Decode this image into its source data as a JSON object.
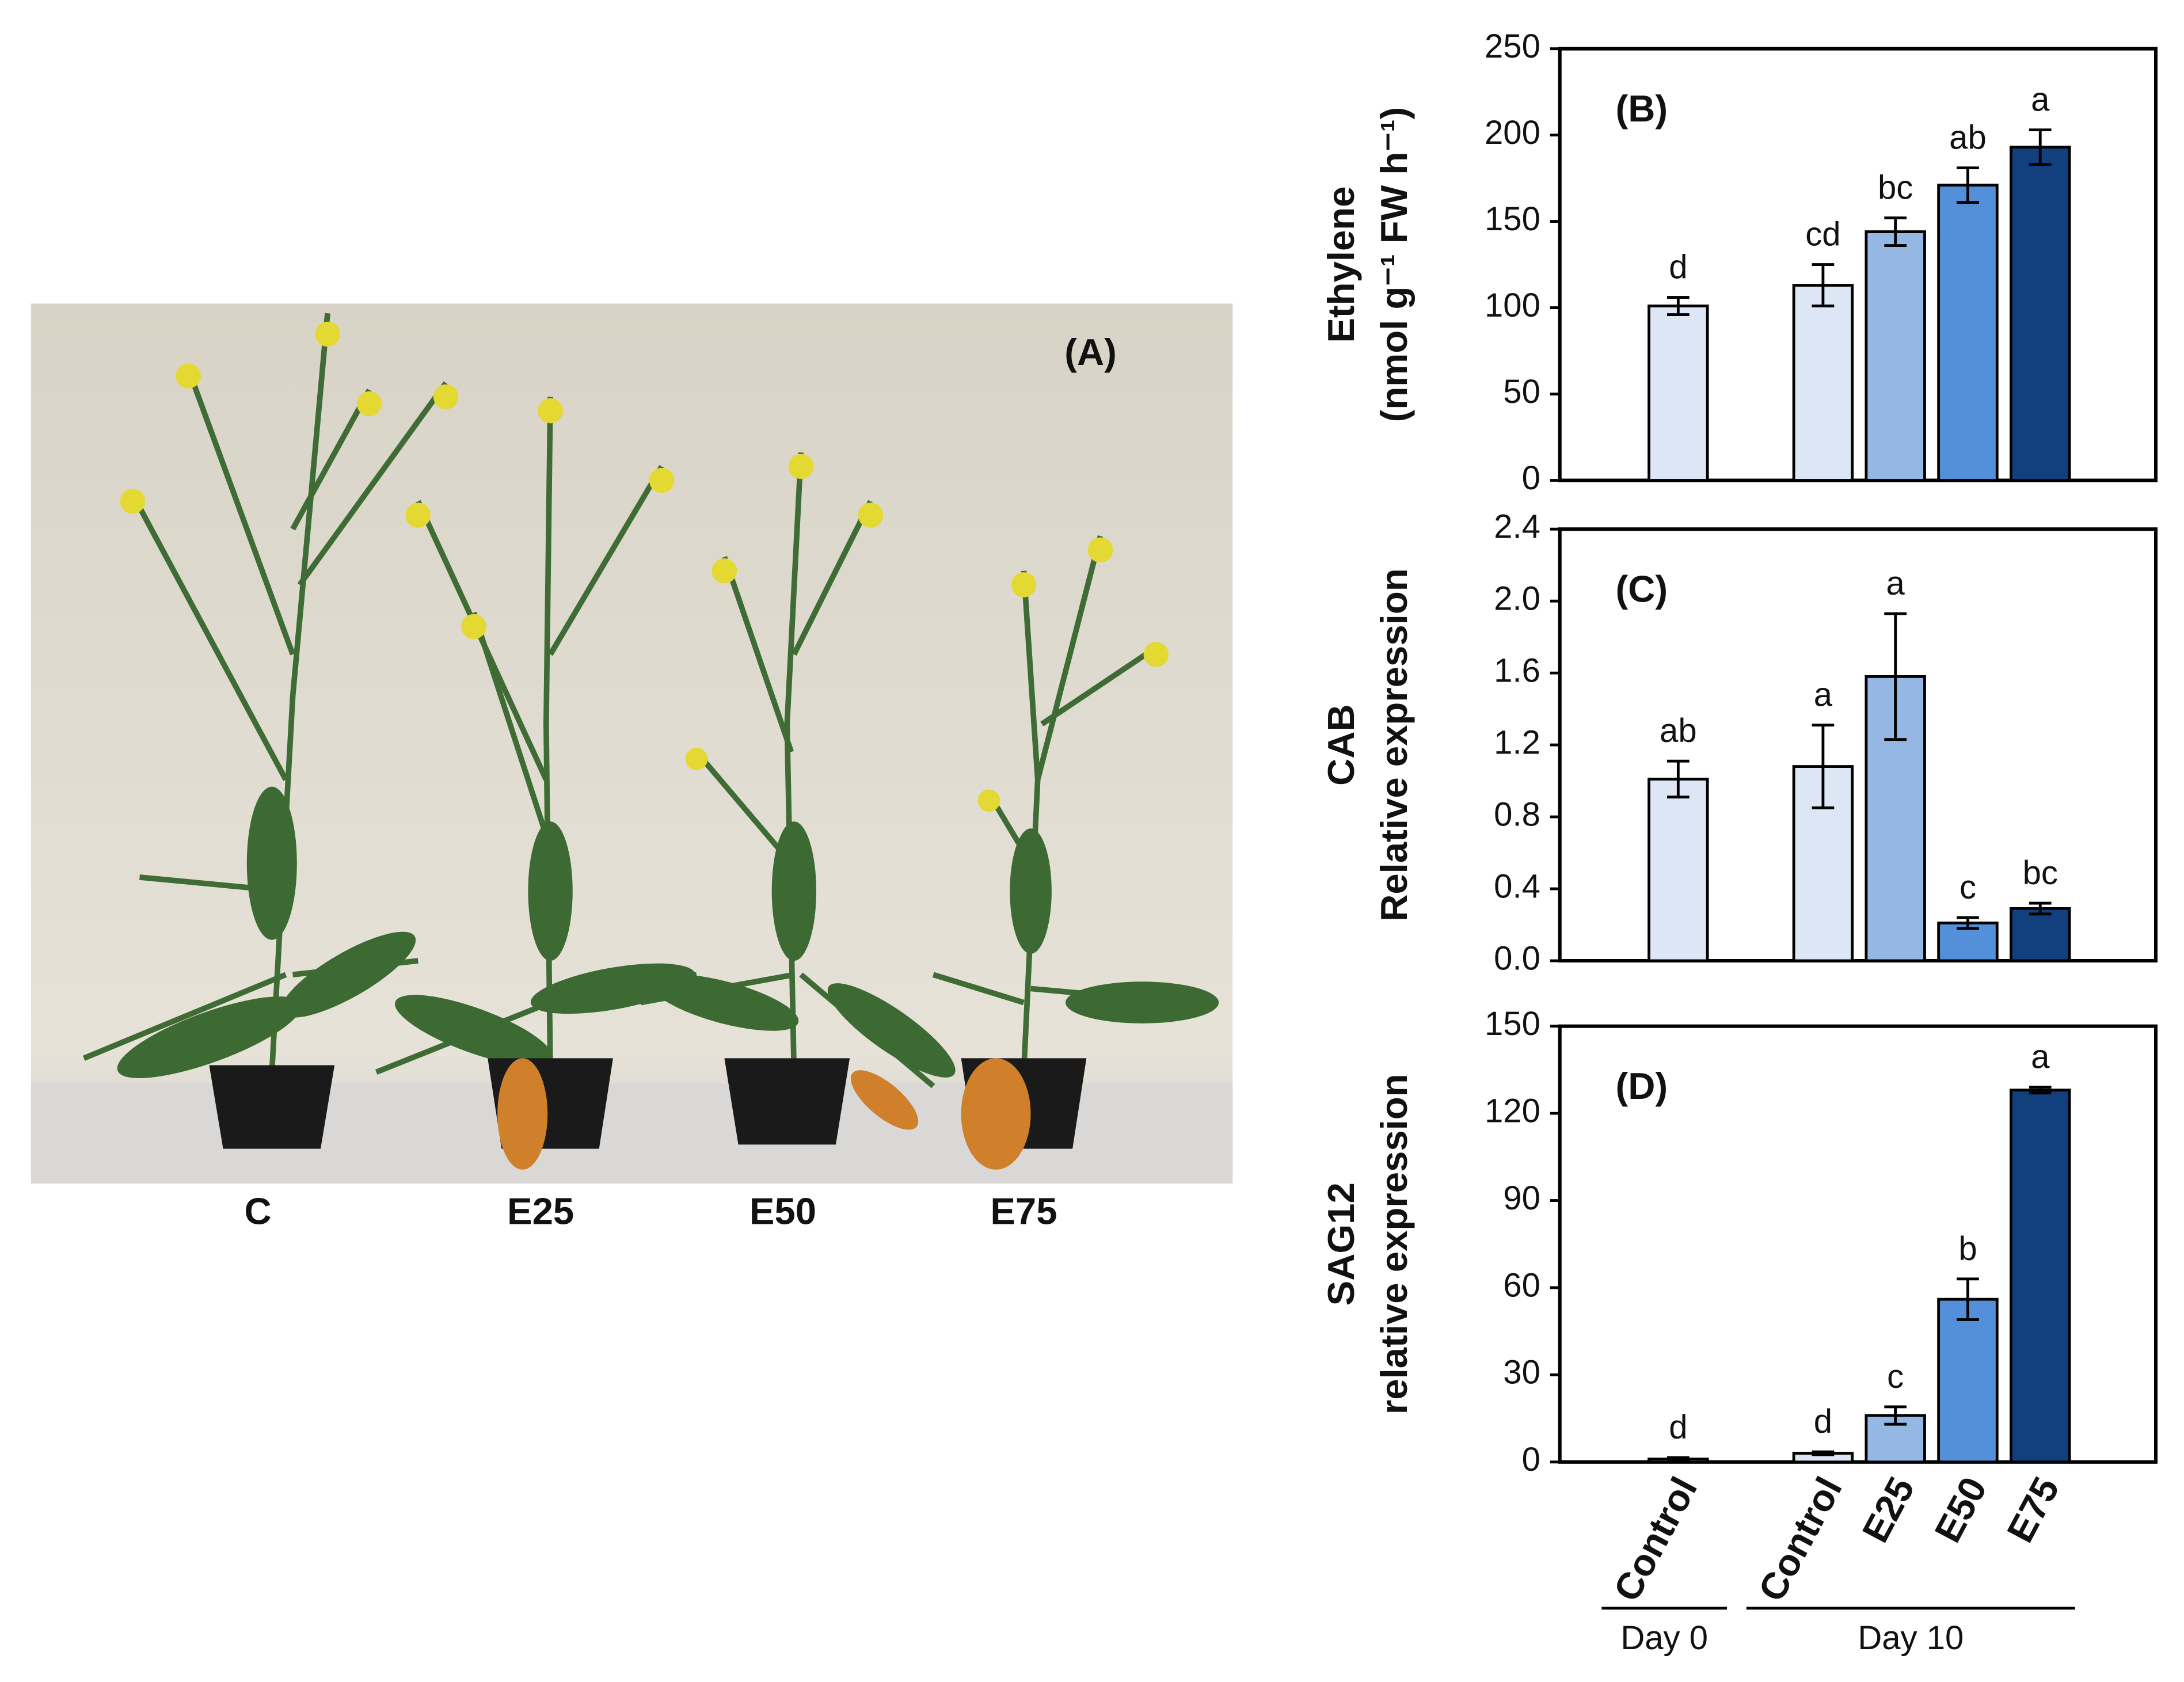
{
  "photo": {
    "label": "(A)",
    "plants": [
      "C",
      "E25",
      "E50",
      "E75"
    ]
  },
  "chart_data": [
    {
      "type": "bar",
      "panel": "(B)",
      "ylabel": [
        "Ethylene",
        "(nmol g⁻¹ FW h⁻¹)"
      ],
      "categories": [
        null,
        null,
        null,
        null,
        null
      ],
      "values": [
        101,
        113,
        144,
        171,
        193
      ],
      "errors": [
        5,
        12,
        8,
        10,
        10
      ],
      "letters": [
        "d",
        "cd",
        "bc",
        "ab",
        "a"
      ],
      "colors": [
        "#dce6f4",
        "#dce6f4",
        "#95b7e3",
        "#5390d9",
        "#123f7e"
      ],
      "ylim": [
        0,
        250
      ],
      "yticks": [
        0,
        50,
        100,
        150,
        200,
        250
      ]
    },
    {
      "type": "bar",
      "panel": "(C)",
      "ylabel": [
        "CAB",
        "Relative expression"
      ],
      "categories": [
        null,
        null,
        null,
        null,
        null
      ],
      "values": [
        1.01,
        1.08,
        1.58,
        0.21,
        0.29
      ],
      "errors": [
        0.1,
        0.23,
        0.35,
        0.03,
        0.03
      ],
      "letters": [
        "ab",
        "a",
        "a",
        "c",
        "bc"
      ],
      "colors": [
        "#dce6f4",
        "#dce6f4",
        "#95b7e3",
        "#5390d9",
        "#123f7e"
      ],
      "ylim": [
        0,
        2.4
      ],
      "yticks": [
        {
          "value": 0,
          "label": "0.0"
        },
        0.4,
        0.8,
        1.2,
        1.6,
        {
          "value": 2,
          "label": "2.0"
        },
        2.4
      ]
    },
    {
      "type": "bar",
      "panel": "(D)",
      "ylabel": [
        "SAG12",
        "relative expression"
      ],
      "categories": [
        "Control",
        "Control",
        "E25",
        "E50",
        "E75"
      ],
      "groups": [
        {
          "name": "Day 0",
          "size": 1
        },
        {
          "name": "Day 10",
          "size": 4
        }
      ],
      "values": [
        1,
        3,
        16,
        56,
        128
      ],
      "errors": [
        0.5,
        0.5,
        3,
        7,
        1
      ],
      "letters": [
        "d",
        "d",
        "c",
        "b",
        "a"
      ],
      "colors": [
        "#dce6f4",
        "#dce6f4",
        "#95b7e3",
        "#5390d9",
        "#123f7e"
      ],
      "ylim": [
        0,
        150
      ],
      "yticks": [
        0,
        30,
        60,
        90,
        120,
        150
      ]
    }
  ]
}
